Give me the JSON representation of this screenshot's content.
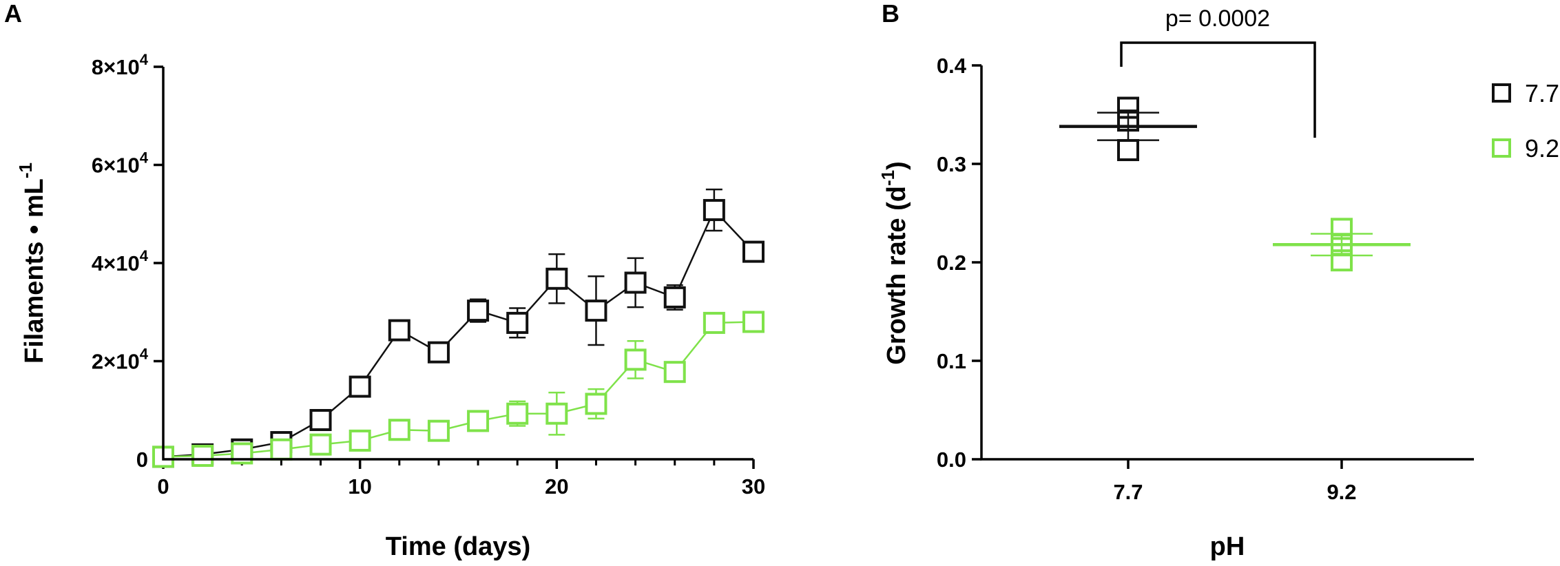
{
  "colors": {
    "ph77": "#111111",
    "ph92": "#7fe24a"
  },
  "chart_data": [
    {
      "type": "line",
      "panel": "A",
      "xlabel": "Time (days)",
      "ylabel": "Filaments • mL",
      "ylabel_sup": "-1",
      "xlim": [
        0,
        30
      ],
      "ylim": [
        0,
        80000
      ],
      "xticks": [
        {
          "value": 0,
          "label": "0"
        },
        {
          "value": 10,
          "label": "10"
        },
        {
          "value": 20,
          "label": "20"
        },
        {
          "value": 30,
          "label": "30"
        }
      ],
      "yticks": [
        {
          "value": 0,
          "base": "0",
          "sup": ""
        },
        {
          "value": 20000,
          "base": "2×10",
          "sup": "4"
        },
        {
          "value": 40000,
          "base": "4×10",
          "sup": "4"
        },
        {
          "value": 60000,
          "base": "6×10",
          "sup": "4"
        },
        {
          "value": 80000,
          "base": "8×10",
          "sup": "4"
        }
      ],
      "x": [
        0,
        2,
        4,
        6,
        8,
        10,
        12,
        14,
        16,
        18,
        20,
        22,
        24,
        26,
        28,
        30
      ],
      "series": [
        {
          "name": "7.7",
          "color_key": "ph77",
          "values": [
            500,
            1000,
            2000,
            3500,
            8000,
            14800,
            26300,
            21800,
            30300,
            27800,
            36800,
            30300,
            36000,
            33000,
            50800,
            42300
          ],
          "errors": [
            200,
            300,
            400,
            500,
            800,
            800,
            800,
            800,
            2300,
            3000,
            5000,
            7000,
            5000,
            2500,
            4200,
            600
          ]
        },
        {
          "name": "9.2",
          "color_key": "ph92",
          "values": [
            500,
            700,
            1200,
            2000,
            3000,
            3800,
            6000,
            5800,
            7800,
            9300,
            9300,
            11300,
            20300,
            17800,
            27800,
            28000
          ],
          "errors": [
            200,
            200,
            300,
            400,
            500,
            500,
            600,
            600,
            1500,
            2500,
            4300,
            3000,
            3800,
            1300,
            1300,
            500
          ]
        }
      ]
    },
    {
      "type": "scatter",
      "panel": "B",
      "xlabel": "pH",
      "ylabel": "Growth rate (d",
      "ylabel_sup": "-1",
      "ylabel_close": ")",
      "ylim": [
        0,
        0.4
      ],
      "yticks": [
        {
          "value": 0.0,
          "label": "0.0"
        },
        {
          "value": 0.1,
          "label": "0.1"
        },
        {
          "value": 0.2,
          "label": "0.2"
        },
        {
          "value": 0.3,
          "label": "0.3"
        },
        {
          "value": 0.4,
          "label": "0.4"
        }
      ],
      "categories": [
        "7.7",
        "9.2"
      ],
      "groups": [
        {
          "name": "7.7",
          "color_key": "ph77",
          "points": [
            0.357,
            0.344,
            0.314
          ],
          "mean": 0.338,
          "sd": 0.014
        },
        {
          "name": "9.2",
          "color_key": "ph92",
          "points": [
            0.234,
            0.218,
            0.202
          ],
          "mean": 0.218,
          "sd": 0.011
        }
      ],
      "significance": {
        "text": "p= 0.0002",
        "from": "7.7",
        "to": "9.2"
      },
      "legend": [
        {
          "label": "7.7",
          "color_key": "ph77"
        },
        {
          "label": "9.2",
          "color_key": "ph92"
        }
      ]
    }
  ]
}
